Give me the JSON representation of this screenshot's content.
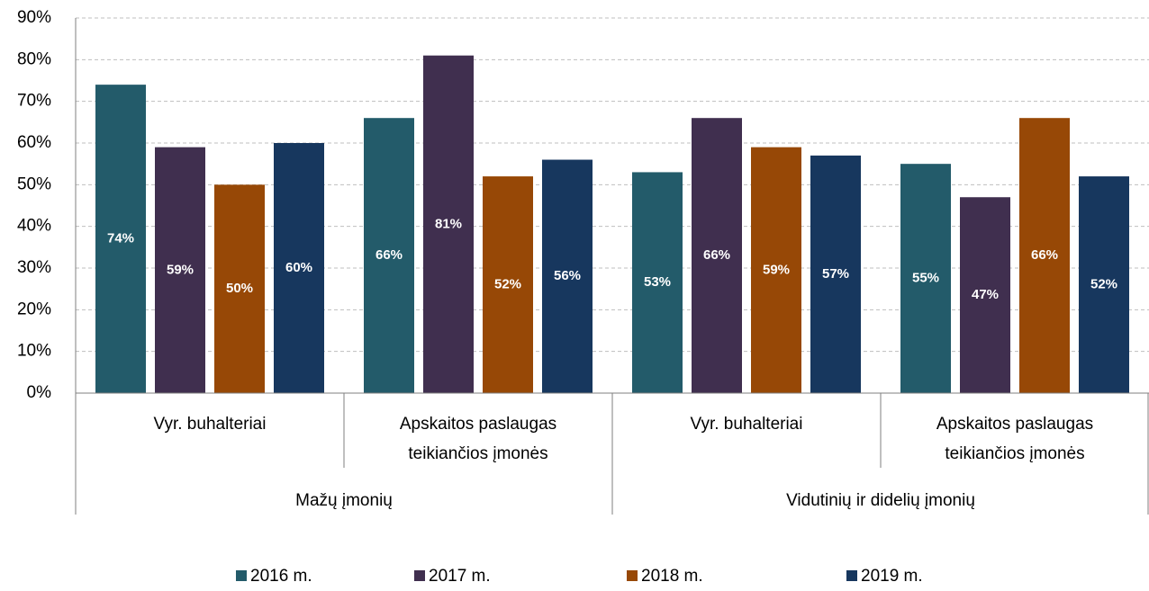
{
  "chart_data": {
    "type": "bar",
    "groups": [
      {
        "name": "Mažų įmonių",
        "categories": [
          "Vyr. buhalteriai",
          "Apskaitos paslaugas teikiančios įmonės"
        ]
      },
      {
        "name": "Vidutinių ir didelių įmonių",
        "categories": [
          "Vyr. buhalteriai",
          "Apskaitos paslaugas teikiančios įmonės"
        ]
      }
    ],
    "series": [
      {
        "name": "2016 m.",
        "color": "#235b6a",
        "values": [
          74,
          66,
          53,
          55
        ],
        "value_labels": [
          "74%",
          "66%",
          "53%",
          "55%"
        ]
      },
      {
        "name": "2017 m.",
        "color": "#402f4f",
        "values": [
          59,
          81,
          66,
          47
        ],
        "value_labels": [
          "59%",
          "81%",
          "66%",
          "47%"
        ]
      },
      {
        "name": "2018 m.",
        "color": "#974806",
        "values": [
          50,
          52,
          59,
          66
        ],
        "value_labels": [
          "50%",
          "52%",
          "59%",
          "66%"
        ]
      },
      {
        "name": "2019 m.",
        "color": "#17375e",
        "values": [
          60,
          56,
          57,
          52
        ],
        "value_labels": [
          "60%",
          "56%",
          "57%",
          "52%"
        ]
      }
    ],
    "ylim": [
      0,
      90
    ],
    "yticks": [
      {
        "value": 0,
        "label": "0%"
      },
      {
        "value": 10,
        "label": "10%"
      },
      {
        "value": 20,
        "label": "20%"
      },
      {
        "value": 30,
        "label": "30%"
      },
      {
        "value": 40,
        "label": "40%"
      },
      {
        "value": 50,
        "label": "50%"
      },
      {
        "value": 60,
        "label": "60%"
      },
      {
        "value": 70,
        "label": "70%"
      },
      {
        "value": 80,
        "label": "80%"
      },
      {
        "value": 90,
        "label": "90%"
      }
    ],
    "grid": true,
    "legend": "bottom"
  }
}
